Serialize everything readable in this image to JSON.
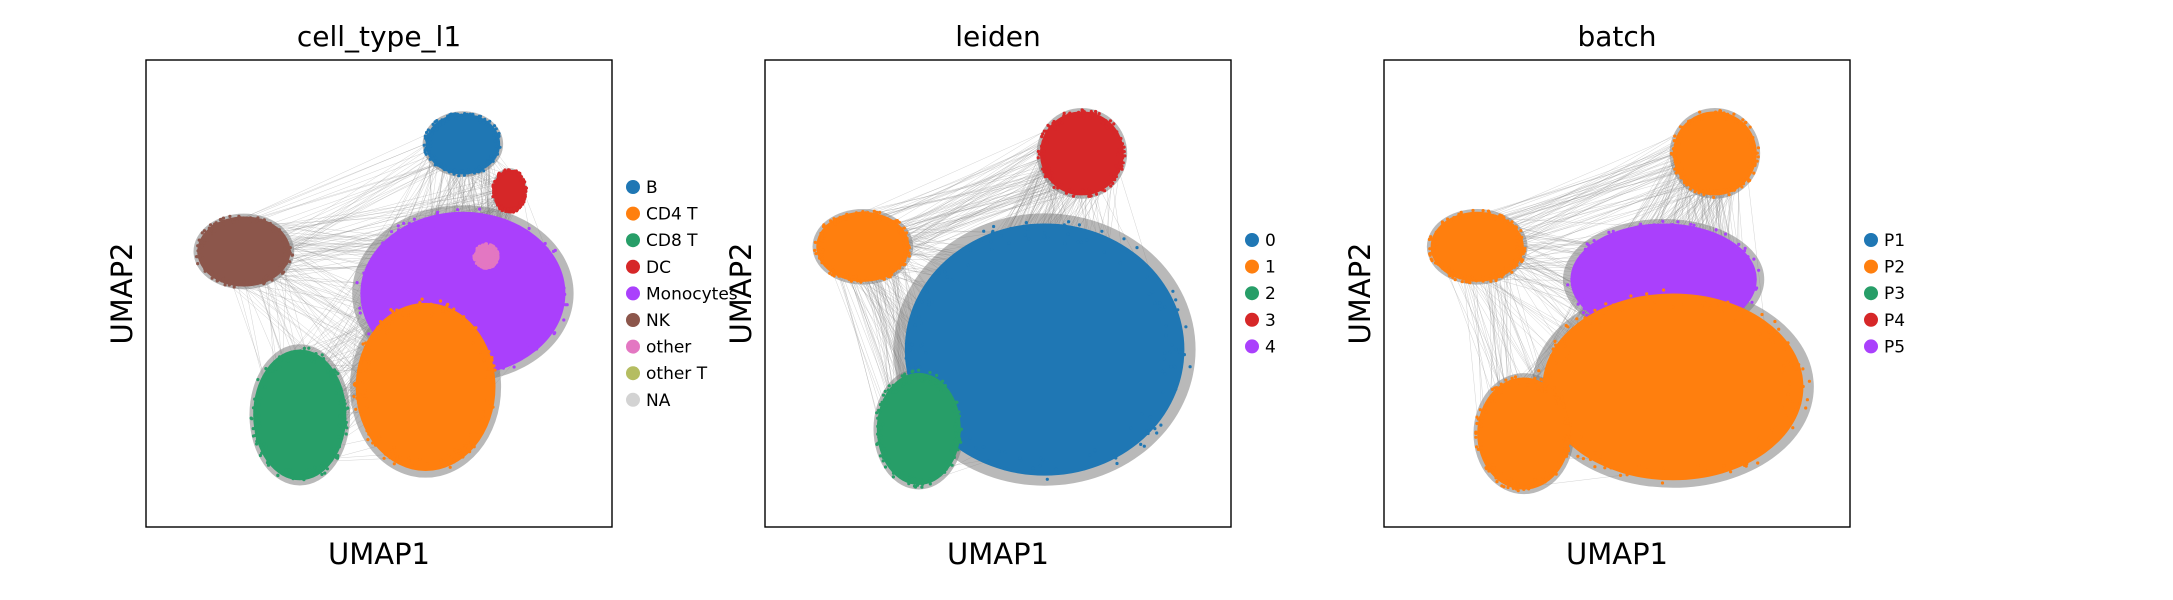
{
  "chart_data": [
    {
      "type": "scatter",
      "title": "cell_type_l1",
      "xlabel": "UMAP1",
      "ylabel": "UMAP2",
      "xticks": [],
      "yticks": [],
      "grid": false,
      "legend_position": "right",
      "edges_color": "#808080",
      "categories": [
        {
          "name": "B",
          "color": "#1f77b4"
        },
        {
          "name": "CD4 T",
          "color": "#ff7f0e"
        },
        {
          "name": "CD8 T",
          "color": "#279e68"
        },
        {
          "name": "DC",
          "color": "#d62728"
        },
        {
          "name": "Monocytes",
          "color": "#aa40fc"
        },
        {
          "name": "NK",
          "color": "#8c564b"
        },
        {
          "name": "other",
          "color": "#e377c2"
        },
        {
          "name": "other T",
          "color": "#b5bd61"
        },
        {
          "name": "NA",
          "color": "#d3d3d3"
        }
      ],
      "clusters": [
        {
          "category": "B",
          "cx": 0.68,
          "cy": 0.82,
          "rx": 0.08,
          "ry": 0.065
        },
        {
          "category": "DC",
          "cx": 0.78,
          "cy": 0.72,
          "rx": 0.035,
          "ry": 0.045
        },
        {
          "category": "NK",
          "cx": 0.21,
          "cy": 0.59,
          "rx": 0.1,
          "ry": 0.075
        },
        {
          "category": "Monocytes",
          "cx": 0.68,
          "cy": 0.5,
          "rx": 0.22,
          "ry": 0.175
        },
        {
          "category": "other",
          "cx": 0.73,
          "cy": 0.58,
          "rx": 0.025,
          "ry": 0.025
        },
        {
          "category": "CD8 T",
          "cx": 0.33,
          "cy": 0.24,
          "rx": 0.1,
          "ry": 0.14
        },
        {
          "category": "CD4 T",
          "cx": 0.6,
          "cy": 0.3,
          "rx": 0.15,
          "ry": 0.18
        }
      ]
    },
    {
      "type": "scatter",
      "title": "leiden",
      "xlabel": "UMAP1",
      "ylabel": "UMAP2",
      "xticks": [],
      "yticks": [],
      "grid": false,
      "legend_position": "right",
      "edges_color": "#808080",
      "categories": [
        {
          "name": "0",
          "color": "#1f77b4"
        },
        {
          "name": "1",
          "color": "#ff7f0e"
        },
        {
          "name": "2",
          "color": "#279e68"
        },
        {
          "name": "3",
          "color": "#d62728"
        },
        {
          "name": "4",
          "color": "#aa40fc"
        }
      ],
      "clusters": [
        {
          "category": "3",
          "cx": 0.68,
          "cy": 0.8,
          "rx": 0.09,
          "ry": 0.09
        },
        {
          "category": "1",
          "cx": 0.21,
          "cy": 0.6,
          "rx": 0.1,
          "ry": 0.075
        },
        {
          "category": "0",
          "cx": 0.6,
          "cy": 0.38,
          "rx": 0.3,
          "ry": 0.27
        },
        {
          "category": "2",
          "cx": 0.33,
          "cy": 0.21,
          "rx": 0.09,
          "ry": 0.12
        }
      ]
    },
    {
      "type": "scatter",
      "title": "batch",
      "xlabel": "UMAP1",
      "ylabel": "UMAP2",
      "xticks": [],
      "yticks": [],
      "grid": false,
      "legend_position": "right",
      "edges_color": "#808080",
      "categories": [
        {
          "name": "P1",
          "color": "#1f77b4"
        },
        {
          "name": "P2",
          "color": "#ff7f0e"
        },
        {
          "name": "P3",
          "color": "#279e68"
        },
        {
          "name": "P4",
          "color": "#d62728"
        },
        {
          "name": "P5",
          "color": "#aa40fc"
        }
      ],
      "clusters": [
        {
          "category": "P2",
          "cx": 0.71,
          "cy": 0.8,
          "rx": 0.09,
          "ry": 0.09
        },
        {
          "category": "P2",
          "cx": 0.2,
          "cy": 0.6,
          "rx": 0.1,
          "ry": 0.075
        },
        {
          "category": "P5",
          "cx": 0.6,
          "cy": 0.53,
          "rx": 0.2,
          "ry": 0.12
        },
        {
          "category": "P2",
          "cx": 0.62,
          "cy": 0.3,
          "rx": 0.28,
          "ry": 0.2
        },
        {
          "category": "P2",
          "cx": 0.3,
          "cy": 0.2,
          "rx": 0.1,
          "ry": 0.12
        }
      ]
    }
  ]
}
